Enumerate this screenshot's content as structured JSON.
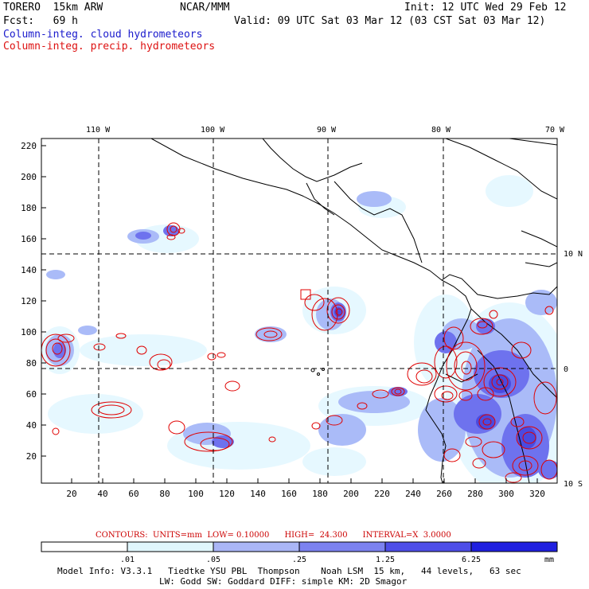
{
  "header": {
    "model": "TORERO  15km ARW",
    "org": "NCAR/MMM",
    "init": "Init: 12 UTC Wed 29 Feb 12",
    "fcst": "Fcst:   69 h",
    "valid": "Valid: 09 UTC Sat 03 Mar 12 (03 CST Sat 03 Mar 12)",
    "field1": "Column-integ. cloud hydrometeors",
    "field2": "Column-integ. precip. hydrometeors"
  },
  "map": {
    "lon_labels": [
      "110 W",
      "100 W",
      "90 W",
      "80 W",
      "70 W"
    ],
    "lat_labels": [
      "10 N",
      "0",
      "10 S"
    ],
    "y_ticks": [
      "220",
      "200",
      "180",
      "160",
      "140",
      "120",
      "100",
      "80",
      "60",
      "40",
      "20"
    ],
    "x_ticks": [
      "20",
      "40",
      "60",
      "80",
      "100",
      "120",
      "140",
      "160",
      "180",
      "200",
      "220",
      "240",
      "260",
      "280",
      "300",
      "320"
    ],
    "colors": {
      "cloud_light": "#e6f8ff",
      "cloud_mid": "#aabbf8",
      "cloud_dark": "#6e72ee",
      "cloud_darker": "#4a4ae0",
      "precip": "#e00000",
      "coast": "#000000"
    }
  },
  "contours": {
    "label": "CONTOURS:  UNITS=mm  LOW= 0.10000      HIGH=  24.300      INTERVAL=X  3.0000"
  },
  "colorbar": {
    "ticks": [
      ".01",
      ".05",
      ".25",
      "1.25",
      "6.25"
    ],
    "unit": "mm",
    "colors": [
      "#ffffff",
      "#e0f6fc",
      "#aab6f6",
      "#7c82f0",
      "#4e4ee8",
      "#2020e0"
    ]
  },
  "footer": {
    "line1": "Model Info: V3.3.1   Tiedtke YSU PBL  Thompson    Noah LSM  15 km,   44 levels,   63 sec",
    "line2": "LW: Godd SW: Goddard DIFF: simple KM: 2D Smagor"
  }
}
